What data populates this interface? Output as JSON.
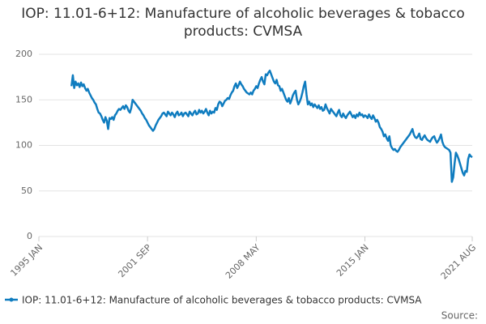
{
  "chart_data": {
    "type": "line",
    "title": "IOP: 11.01-6+12: Manufacture of alcoholic beverages & tobacco products: CVMSA",
    "source_label": "Source:",
    "categories": [
      "1995 JAN",
      null,
      null,
      null,
      null,
      null,
      null,
      null,
      null,
      null,
      null,
      null,
      null,
      null,
      null,
      null,
      null,
      null,
      null,
      null,
      null,
      null,
      null,
      null,
      null,
      null,
      null,
      null,
      null,
      null,
      null,
      null,
      null,
      null,
      null,
      null,
      null,
      null,
      null,
      null,
      null,
      null,
      null,
      null,
      null,
      null,
      null,
      null,
      null,
      null,
      null,
      null,
      null,
      null,
      null,
      null,
      null,
      null,
      null,
      null,
      null,
      null,
      null,
      null,
      null,
      null,
      null,
      null,
      null,
      null,
      null,
      null,
      null,
      null,
      null,
      null,
      null,
      null,
      null,
      null,
      "2001 SEP",
      null,
      null,
      null,
      null,
      null,
      null,
      null,
      null,
      null,
      null,
      null,
      null,
      null,
      null,
      null,
      null,
      null,
      null,
      null,
      null,
      null,
      null,
      null,
      null,
      null,
      null,
      null,
      null,
      null,
      null,
      null,
      null,
      null,
      null,
      null,
      null,
      null,
      null,
      null,
      null,
      null,
      null,
      null,
      null,
      null,
      null,
      null,
      null,
      null,
      null,
      null,
      null,
      null,
      null,
      null,
      null,
      null,
      null,
      null,
      null,
      null,
      null,
      null,
      null,
      null,
      null,
      null,
      null,
      null,
      null,
      null,
      null,
      null,
      null,
      null,
      null,
      null,
      null,
      null,
      "2008 MAY",
      null,
      null,
      null,
      null,
      null,
      null,
      null,
      null,
      null,
      null,
      null,
      null,
      null,
      null,
      null,
      null,
      null,
      null,
      null,
      null,
      null,
      null,
      null,
      null,
      null,
      null,
      null,
      null,
      null,
      null,
      null,
      null,
      null,
      null,
      null,
      null,
      null,
      null,
      null,
      null,
      null,
      null,
      null,
      null,
      null,
      null,
      null,
      null,
      null,
      null,
      null,
      null,
      null,
      null,
      null,
      null,
      null,
      null,
      null,
      null,
      null,
      null,
      null,
      null,
      null,
      null,
      null,
      null,
      null,
      null,
      null,
      null,
      null,
      null,
      null,
      null,
      null,
      null,
      null,
      "2015 JAN",
      null,
      null,
      null,
      null,
      null,
      null,
      null,
      null,
      null,
      null,
      null,
      null,
      null,
      null,
      null,
      null,
      null,
      null,
      null,
      null,
      null,
      null,
      null,
      null,
      null,
      null,
      null,
      null,
      null,
      null,
      null,
      null,
      null,
      null,
      null,
      null,
      null,
      null,
      null,
      null,
      null,
      null,
      null,
      null,
      null,
      null,
      null,
      null,
      null,
      null,
      null,
      null,
      null,
      null,
      null,
      null,
      null,
      null,
      null,
      null,
      null,
      null,
      null,
      null,
      null,
      null,
      null,
      null,
      null,
      null,
      null,
      null,
      null,
      null,
      null,
      null,
      null,
      null,
      "2021 AUG"
    ],
    "series": [
      {
        "name": "IOP: 11.01-6+12: Manufacture of alcoholic beverages & tobacco products: CVMSA",
        "color": "#0f7cbf",
        "values": [
          null,
          null,
          null,
          null,
          null,
          null,
          null,
          null,
          null,
          null,
          null,
          null,
          null,
          null,
          null,
          null,
          null,
          null,
          null,
          null,
          null,
          null,
          null,
          null,
          165,
          177,
          163,
          170,
          166,
          168,
          164,
          169,
          165,
          167,
          163,
          160,
          162,
          158,
          155,
          152,
          150,
          147,
          145,
          140,
          136,
          135,
          132,
          128,
          125,
          131,
          127,
          118,
          130,
          129,
          131,
          128,
          133,
          135,
          138,
          140,
          139,
          141,
          143,
          140,
          144,
          142,
          138,
          136,
          141,
          150,
          148,
          146,
          144,
          142,
          140,
          138,
          135,
          133,
          130,
          128,
          125,
          122,
          120,
          118,
          116,
          118,
          122,
          125,
          128,
          130,
          132,
          135,
          136,
          134,
          132,
          137,
          135,
          133,
          136,
          134,
          131,
          135,
          137,
          133,
          134,
          136,
          132,
          135,
          136,
          134,
          132,
          137,
          135,
          133,
          136,
          138,
          134,
          135,
          139,
          136,
          138,
          135,
          137,
          140,
          136,
          133,
          138,
          135,
          137,
          136,
          141,
          139,
          145,
          148,
          147,
          143,
          146,
          149,
          150,
          152,
          151,
          155,
          158,
          160,
          165,
          168,
          163,
          166,
          170,
          167,
          165,
          162,
          160,
          158,
          157,
          156,
          158,
          156,
          160,
          162,
          165,
          163,
          168,
          172,
          175,
          170,
          167,
          178,
          177,
          180,
          182,
          178,
          174,
          170,
          168,
          172,
          166,
          165,
          160,
          162,
          158,
          154,
          150,
          148,
          152,
          146,
          150,
          155,
          158,
          160,
          150,
          145,
          148,
          152,
          158,
          165,
          170,
          156,
          145,
          148,
          144,
          146,
          142,
          145,
          143,
          141,
          144,
          140,
          142,
          138,
          139,
          145,
          141,
          138,
          135,
          140,
          138,
          136,
          134,
          132,
          136,
          139,
          133,
          131,
          135,
          132,
          130,
          133,
          135,
          137,
          134,
          131,
          133,
          130,
          134,
          132,
          136,
          133,
          134,
          131,
          133,
          132,
          130,
          134,
          131,
          129,
          133,
          130,
          126,
          128,
          125,
          120,
          118,
          115,
          110,
          112,
          108,
          105,
          110,
          100,
          97,
          95,
          96,
          94,
          93,
          95,
          98,
          100,
          102,
          104,
          106,
          108,
          110,
          112,
          115,
          118,
          112,
          109,
          108,
          110,
          113,
          107,
          106,
          109,
          111,
          108,
          106,
          105,
          104,
          107,
          109,
          110,
          106,
          103,
          105,
          108,
          112,
          104,
          100,
          98,
          97,
          96,
          95,
          92,
          60,
          65,
          80,
          92,
          89,
          85,
          80,
          75,
          70,
          67,
          72,
          71,
          85,
          90,
          88,
          87
        ]
      }
    ],
    "ylim": [
      0,
      200
    ],
    "yticks": [
      0,
      50,
      100,
      150,
      200
    ],
    "grid": true
  }
}
